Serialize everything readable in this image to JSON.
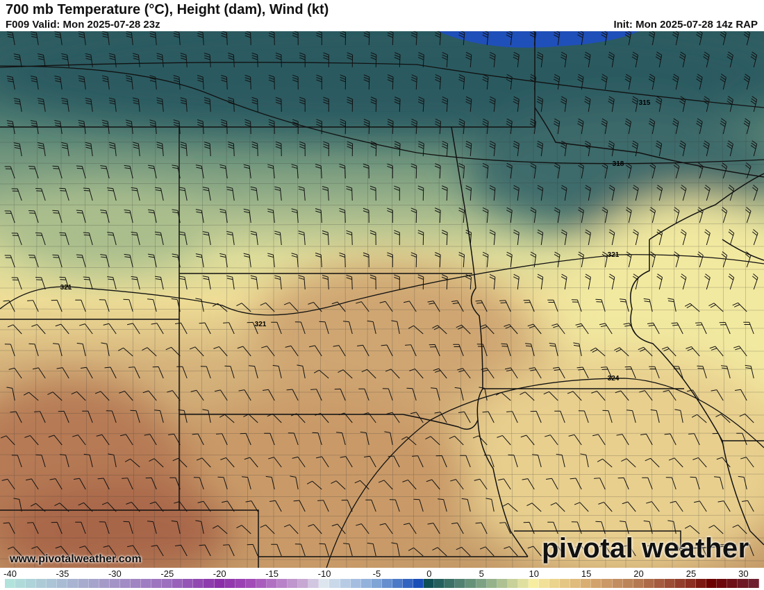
{
  "header": {
    "title": "700 mb Temperature (°C), Height (dam), Wind (kt)",
    "valid": "F009 Valid: Mon 2025-07-28 23z",
    "init": "Init: Mon 2025-07-28 14z RAP"
  },
  "map": {
    "height_contours": [
      {
        "label": "315"
      },
      {
        "label": "318"
      },
      {
        "label": "321"
      },
      {
        "label": "321"
      },
      {
        "label": "321"
      },
      {
        "label": "324"
      }
    ],
    "colors": {
      "cold_blue": "#1f4fb8",
      "dark_teal": "#2e5c60",
      "green": "#8fab86",
      "pale_yellow": "#f1e79d",
      "tan": "#d0ad77",
      "brown": "#ad6e4e"
    }
  },
  "branding": {
    "website": "www.pivotalweather.com",
    "logo": "pivotal weather"
  },
  "colorbar": {
    "unit": "°C",
    "ticks": [
      "-40",
      "-35",
      "-30",
      "-25",
      "-20",
      "-15",
      "-10",
      "-5",
      "0",
      "5",
      "10",
      "15",
      "20",
      "25",
      "30"
    ],
    "range": [
      -40,
      31
    ]
  }
}
